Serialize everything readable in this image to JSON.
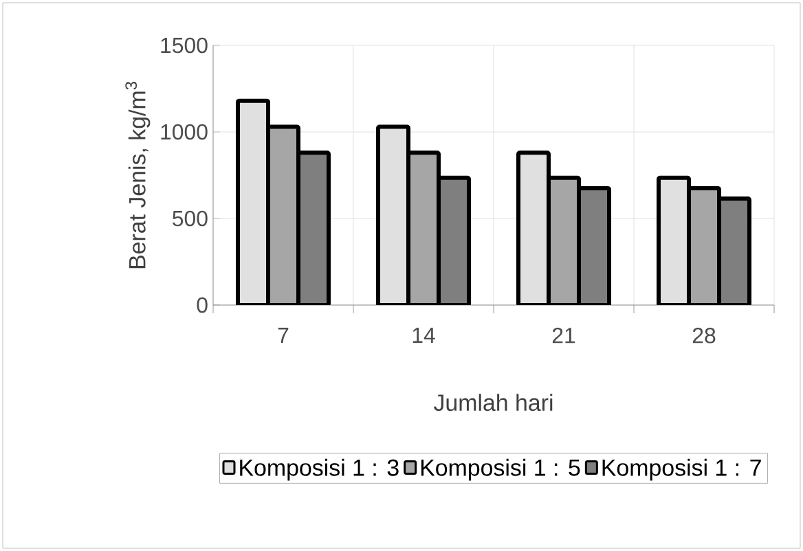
{
  "chart_data": {
    "type": "bar",
    "xlabel": "Jumlah hari",
    "ylabel": "Berat Jenis, kg/m$^{3}$",
    "categories": [
      "7",
      "14",
      "21",
      "28"
    ],
    "series": [
      {
        "name": "Komposisi 1 : 3",
        "color": "#e0e0e0",
        "values": [
          1180,
          1030,
          880,
          735
        ]
      },
      {
        "name": "Komposisi 1 : 5",
        "color": "#a6a6a6",
        "values": [
          1030,
          880,
          735,
          675
        ]
      },
      {
        "name": "Komposisi 1 : 7",
        "color": "#7f7f7f",
        "values": [
          880,
          735,
          675,
          615
        ]
      }
    ],
    "ylim": [
      0,
      1500
    ],
    "yticks": [
      0,
      500,
      1000,
      1500
    ],
    "grid": true,
    "legend": "bottom"
  }
}
